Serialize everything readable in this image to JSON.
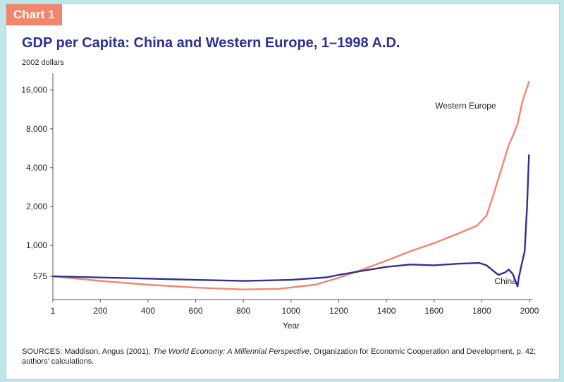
{
  "tag": "Chart 1",
  "title": "GDP per Capita: China and Western Europe, 1–1998 A.D.",
  "unit_label": "2002 dollars",
  "sources": {
    "prefix": "SOURCES: Maddison, Angus (2001), ",
    "italic": "The World Economy: A Millennial Perspective",
    "suffix": ", Organization for Economic Cooperation and Development, p. 42; authors’ calculations."
  },
  "colors": {
    "western_europe": "#f2866d",
    "china": "#2e3192",
    "tag_bg": "#f2866d",
    "title": "#2e3192",
    "frame": "#bfe6e8"
  },
  "chart_data": {
    "type": "line",
    "title": "GDP per Capita: China and Western Europe, 1–1998 A.D.",
    "xlabel": "Year",
    "ylabel": "2002 dollars",
    "yscale": "log",
    "xlim": [
      1,
      2000
    ],
    "ylim": [
      380,
      19000
    ],
    "x_ticks": [
      1,
      200,
      400,
      600,
      800,
      1000,
      1200,
      1400,
      1600,
      1800,
      2000
    ],
    "y_ticks": [
      575,
      1000,
      2000,
      4000,
      8000,
      16000
    ],
    "y_tick_labels": [
      "575",
      "1,000",
      "2,000",
      "4,000",
      "8,000",
      "16,000"
    ],
    "grid": false,
    "series": [
      {
        "name": "Western Europe",
        "color": "#f2866d",
        "x": [
          1,
          200,
          400,
          600,
          800,
          950,
          1100,
          1200,
          1300,
          1400,
          1500,
          1600,
          1700,
          1780,
          1820,
          1850,
          1870,
          1900,
          1913,
          1930,
          1950,
          1970,
          1998
        ],
        "y": [
          575,
          530,
          495,
          470,
          455,
          460,
          495,
          560,
          650,
          760,
          900,
          1040,
          1230,
          1420,
          1700,
          2500,
          3300,
          5000,
          6000,
          7000,
          8700,
          13000,
          18500
        ]
      },
      {
        "name": "China",
        "color": "#2e3192",
        "x": [
          1,
          200,
          400,
          600,
          800,
          1000,
          1150,
          1200,
          1300,
          1400,
          1500,
          1600,
          1700,
          1790,
          1820,
          1850,
          1870,
          1900,
          1913,
          1930,
          1950,
          1955,
          1970,
          1980,
          1990,
          1998
        ],
        "y": [
          575,
          563,
          552,
          540,
          530,
          540,
          565,
          590,
          635,
          680,
          710,
          700,
          720,
          730,
          700,
          630,
          590,
          620,
          650,
          600,
          480,
          560,
          750,
          900,
          2000,
          5000
        ]
      }
    ],
    "annotations": [
      {
        "text": "Western Europe",
        "series": "Western Europe"
      },
      {
        "text": "China",
        "series": "China"
      }
    ]
  }
}
